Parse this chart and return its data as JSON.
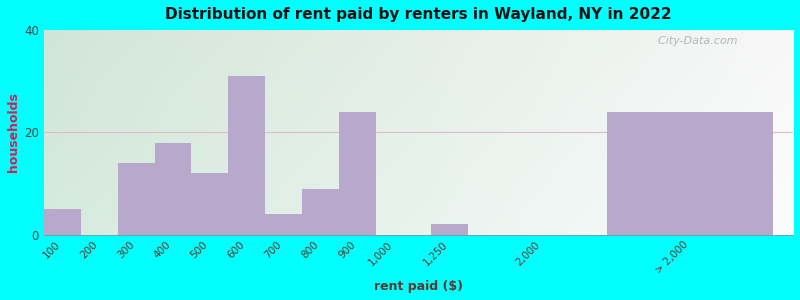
{
  "title": "Distribution of rent paid by renters in Wayland, NY in 2022",
  "xlabel": "rent paid ($)",
  "ylabel": "households",
  "bar_color": "#b8a8cc",
  "background_outer": "#00ffff",
  "categories": [
    "100",
    "200",
    "300",
    "400",
    "500",
    "600",
    "700",
    "800",
    "900",
    "1,000",
    "1,250",
    "2,000",
    "> 2,000"
  ],
  "values": [
    5,
    0,
    14,
    18,
    12,
    31,
    4,
    9,
    24,
    0,
    2,
    0,
    24
  ],
  "ylim": [
    0,
    40
  ],
  "yticks": [
    0,
    20,
    40
  ],
  "watermark": "  City-Data.com"
}
